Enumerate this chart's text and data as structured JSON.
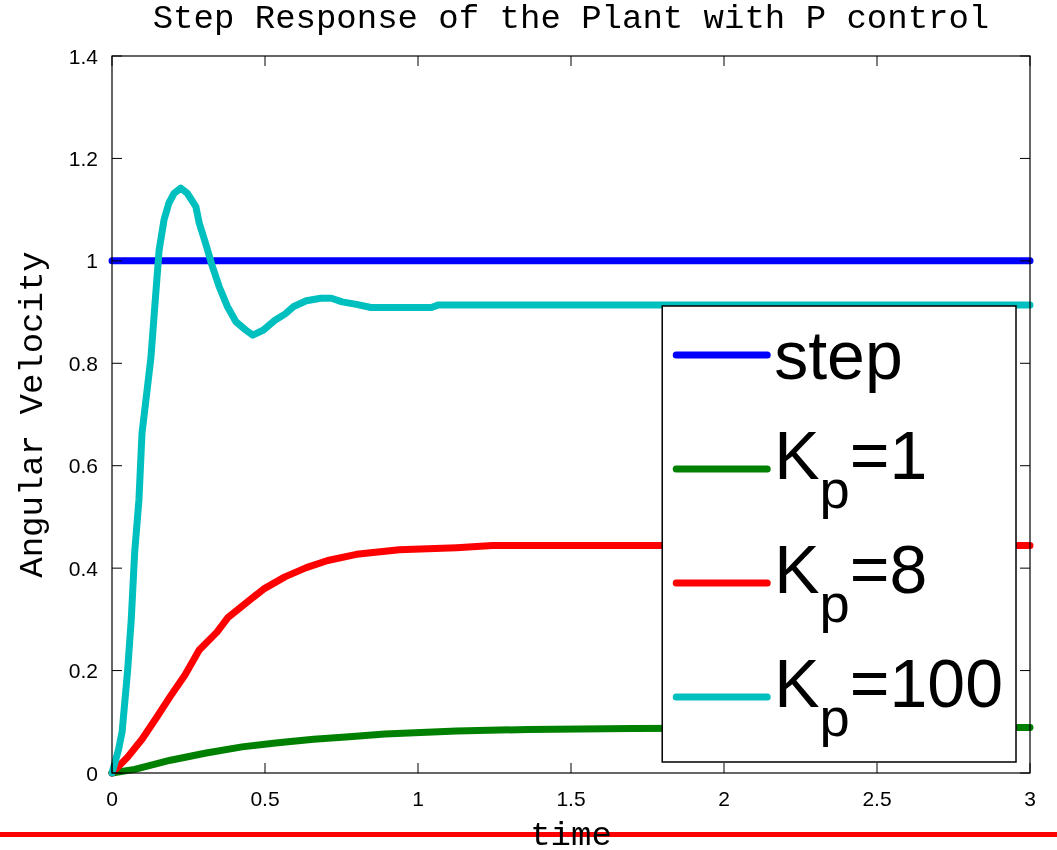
{
  "chart_data": {
    "type": "line",
    "title": "Step Response of the Plant with P control",
    "xlabel": "time",
    "ylabel": "Angular Velocity",
    "xlim": [
      0,
      3
    ],
    "ylim": [
      0,
      1.4
    ],
    "xticks": [
      0,
      0.5,
      1,
      1.5,
      2,
      2.5,
      3
    ],
    "yticks": [
      0,
      0.2,
      0.4,
      0.6,
      0.8,
      1,
      1.2,
      1.4
    ],
    "legend": "bottom right",
    "series": [
      {
        "name": "step",
        "color": "#0000ff",
        "x": [
          0,
          3
        ],
        "values": [
          1,
          1
        ]
      },
      {
        "name": "K$_{p}$=1",
        "color": "#008000",
        "x": [
          0,
          0.074,
          0.191,
          0.308,
          0.425,
          0.542,
          0.659,
          0.775,
          0.892,
          1.126,
          1.359,
          1.7,
          3
        ],
        "values": [
          0,
          0.007,
          0.025,
          0.039,
          0.051,
          0.059,
          0.066,
          0.071,
          0.076,
          0.082,
          0.085,
          0.087,
          0.089
        ]
      },
      {
        "name": "K$_{p}$=8",
        "color": "#ff0000",
        "x": [
          0,
          0.051,
          0.098,
          0.144,
          0.191,
          0.238,
          0.285,
          0.343,
          0.378,
          0.436,
          0.495,
          0.565,
          0.635,
          0.705,
          0.799,
          0.939,
          1.126,
          1.243,
          3
        ],
        "values": [
          0,
          0.031,
          0.066,
          0.107,
          0.15,
          0.191,
          0.24,
          0.275,
          0.303,
          0.331,
          0.359,
          0.383,
          0.401,
          0.415,
          0.427,
          0.436,
          0.44,
          0.444,
          0.444
        ]
      },
      {
        "name": "K$_{p}$=100",
        "color": "#00bfbf",
        "x": [
          0,
          0.021,
          0.033,
          0.051,
          0.063,
          0.074,
          0.088,
          0.098,
          0.127,
          0.142,
          0.154,
          0.17,
          0.186,
          0.203,
          0.225,
          0.246,
          0.274,
          0.285,
          0.306,
          0.328,
          0.35,
          0.377,
          0.405,
          0.437,
          0.46,
          0.495,
          0.53,
          0.565,
          0.594,
          0.635,
          0.682,
          0.717,
          0.752,
          0.799,
          0.846,
          1.044,
          1.067,
          3
        ],
        "values": [
          0,
          0.045,
          0.08,
          0.2,
          0.3,
          0.43,
          0.533,
          0.663,
          0.81,
          0.928,
          1.021,
          1.08,
          1.113,
          1.132,
          1.142,
          1.132,
          1.106,
          1.074,
          1.034,
          0.989,
          0.95,
          0.911,
          0.881,
          0.865,
          0.855,
          0.865,
          0.883,
          0.896,
          0.911,
          0.922,
          0.927,
          0.927,
          0.92,
          0.915,
          0.909,
          0.909,
          0.914,
          0.914
        ]
      }
    ]
  }
}
